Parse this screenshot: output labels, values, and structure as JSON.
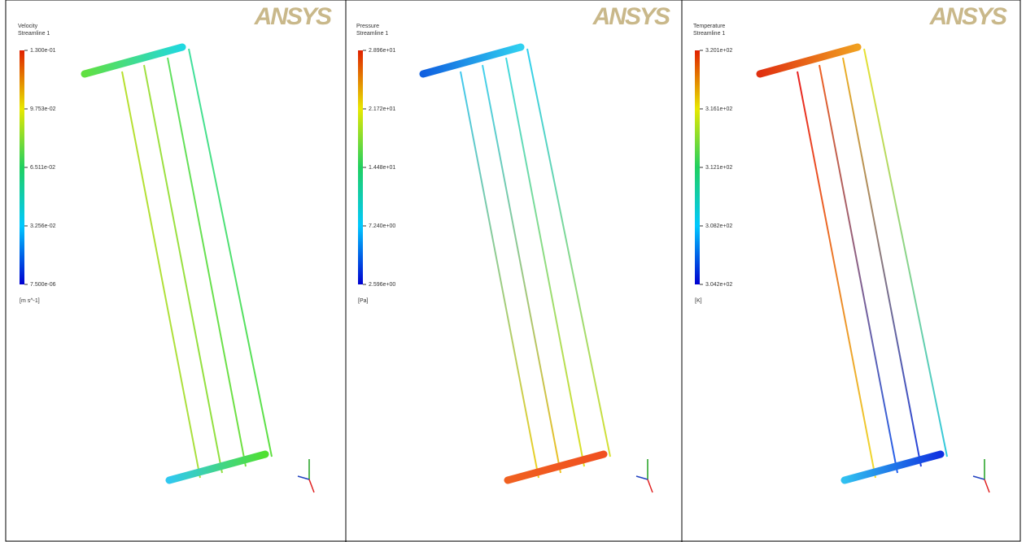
{
  "panels": [
    {
      "logo": "ANSYS",
      "legend": {
        "title": "Velocity",
        "subtitle": "Streamline 1",
        "labels": [
          "1.300e-01",
          "9.753e-02",
          "6.511e-02",
          "3.256e-02",
          "7.500e-06"
        ],
        "unit": "[m s^-1]"
      }
    },
    {
      "logo": "ANSYS",
      "legend": {
        "title": "Pressure",
        "subtitle": "Streamline 1",
        "labels": [
          "2.896e+01",
          "2.172e+01",
          "1.448e+01",
          "7.240e+00",
          "2.596e+00"
        ],
        "unit": "[Pa]"
      }
    },
    {
      "logo": "ANSYS",
      "legend": {
        "title": "Temperature",
        "subtitle": "Streamline 1",
        "labels": [
          "3.201e+02",
          "3.161e+02",
          "3.121e+02",
          "3.082e+02",
          "3.042e+02"
        ],
        "unit": "[K]"
      }
    }
  ]
}
